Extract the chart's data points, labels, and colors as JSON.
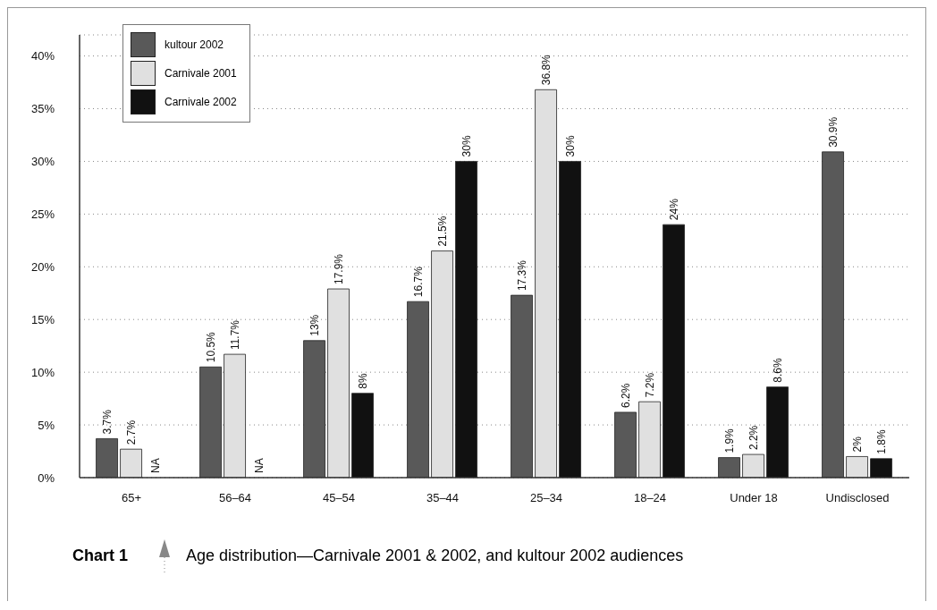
{
  "chart_data": {
    "type": "bar",
    "title": "Chart 1",
    "subtitle": "Age distribution—Carnivale 2001 & 2002, and kultour 2002 audiences",
    "categories": [
      "65+",
      "56–64",
      "45–54",
      "35–44",
      "25–34",
      "18–24",
      "Under 18",
      "Undisclosed"
    ],
    "series": [
      {
        "name": "kultour 2002",
        "color": "#595959",
        "values": [
          3.7,
          10.5,
          13,
          16.7,
          17.3,
          6.2,
          1.9,
          30.9
        ],
        "value_labels": [
          "3.7%",
          "10.5%",
          "13%",
          "16.7%",
          "17.3%",
          "6.2%",
          "1.9%",
          "30.9%"
        ]
      },
      {
        "name": "Carnivale 2001",
        "color": "#e0e0e0",
        "values": [
          2.7,
          11.7,
          17.9,
          21.5,
          36.8,
          7.2,
          2.2,
          2
        ],
        "value_labels": [
          "2.7%",
          "11.7%",
          "17.9%",
          "21.5%",
          "36.8%",
          "7.2%",
          "2.2%",
          "2%"
        ]
      },
      {
        "name": "Carnivale 2002",
        "color": "#111111",
        "values": [
          null,
          null,
          8,
          30,
          30,
          24,
          8.6,
          1.8
        ],
        "value_labels": [
          "NA",
          "NA",
          "8%",
          "30%",
          "30%",
          "24%",
          "8.6%",
          "1.8%"
        ]
      }
    ],
    "ylim": [
      0,
      42
    ],
    "yticks": [
      {
        "value": 0,
        "label": "0%"
      },
      {
        "value": 5,
        "label": "5%"
      },
      {
        "value": 10,
        "label": "10%"
      },
      {
        "value": 15,
        "label": "15%"
      },
      {
        "value": 20,
        "label": "20%"
      },
      {
        "value": 25,
        "label": "25%"
      },
      {
        "value": 30,
        "label": "30%"
      },
      {
        "value": 35,
        "label": "35%"
      },
      {
        "value": 40,
        "label": "40%"
      }
    ],
    "grid": "y",
    "legend": "top left"
  }
}
